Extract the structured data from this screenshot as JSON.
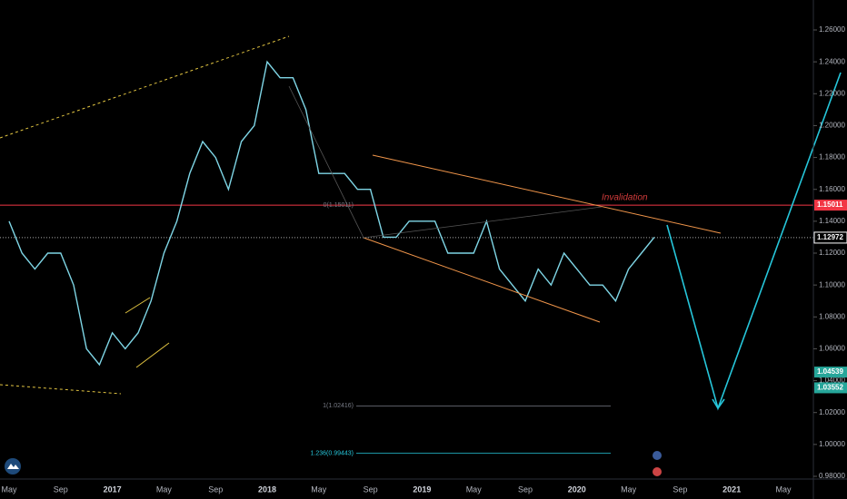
{
  "chart_data": {
    "type": "line",
    "categories": [
      "May",
      null,
      null,
      null,
      "Sep",
      null,
      null,
      null,
      "2017",
      null,
      null,
      null,
      "May",
      null,
      null,
      null,
      "Sep",
      null,
      null,
      null,
      "2018",
      null,
      null,
      null,
      "May",
      null,
      null,
      null,
      "Sep",
      null,
      null,
      null,
      "2019",
      null,
      null,
      null,
      "May",
      null,
      null,
      null,
      "Sep",
      null,
      null,
      null,
      "2020",
      null,
      null,
      null,
      "May",
      null,
      null,
      null,
      "Sep",
      null,
      null,
      null,
      "2021",
      null,
      null,
      null,
      "May",
      null
    ],
    "values": [
      1.14,
      1.12,
      1.11,
      1.12,
      1.12,
      1.1,
      1.06,
      1.05,
      1.07,
      1.06,
      1.07,
      1.09,
      1.12,
      1.14,
      1.17,
      1.19,
      1.18,
      1.16,
      1.19,
      1.2,
      1.24,
      1.23,
      1.23,
      1.21,
      1.17,
      1.17,
      1.17,
      1.16,
      1.16,
      1.13,
      1.13,
      1.14,
      1.14,
      1.14,
      1.12,
      1.12,
      1.12,
      1.14,
      1.11,
      1.1,
      1.09,
      1.11,
      1.1,
      1.12,
      1.11,
      1.1,
      1.1,
      1.09,
      1.11,
      1.12,
      1.13,
      null,
      null,
      null,
      null,
      null,
      null,
      null,
      null,
      null,
      null,
      null
    ],
    "color": "#7fd6e6",
    "ylim": [
      0.98,
      1.26
    ],
    "yticks": [
      {
        "value": 0.98,
        "label": "0.98000"
      },
      {
        "value": 1.0,
        "label": "1.00000"
      },
      {
        "value": 1.02,
        "label": "1.02000"
      },
      {
        "value": 1.04,
        "label": "1.04000"
      },
      {
        "value": 1.06,
        "label": "1.06000"
      },
      {
        "value": 1.08,
        "label": "1.08000"
      },
      {
        "value": 1.1,
        "label": "1.10000"
      },
      {
        "value": 1.12,
        "label": "1.12000"
      },
      {
        "value": 1.14,
        "label": "1.14000"
      },
      {
        "value": 1.16,
        "label": "1.16000"
      },
      {
        "value": 1.18,
        "label": "1.18000"
      },
      {
        "value": 1.2,
        "label": "1.20000"
      },
      {
        "value": 1.22,
        "label": "1.22000"
      },
      {
        "value": 1.24,
        "label": "1.24000"
      },
      {
        "value": 1.26,
        "label": "1.26000"
      }
    ],
    "price_tags": [
      {
        "value": 1.15011,
        "label": "1.15011",
        "color": "#f23645"
      },
      {
        "value": 1.12972,
        "label": "1.12972",
        "color": "#ffffff"
      },
      {
        "value": 1.04539,
        "label": "1.04539",
        "color": "#26a69a"
      },
      {
        "value": 1.03552,
        "label": "1.03552",
        "color": "#26a69a"
      }
    ],
    "fib_levels": [
      {
        "value": 1.15011,
        "label": "0(1.15011)",
        "color": "#787b86"
      },
      {
        "value": 1.02416,
        "label": "1(1.02416)",
        "color": "#787b86"
      },
      {
        "value": 0.99443,
        "label": "1.236(0.99443)",
        "color": "#26c6da"
      }
    ],
    "annotation": "Invalidation"
  }
}
